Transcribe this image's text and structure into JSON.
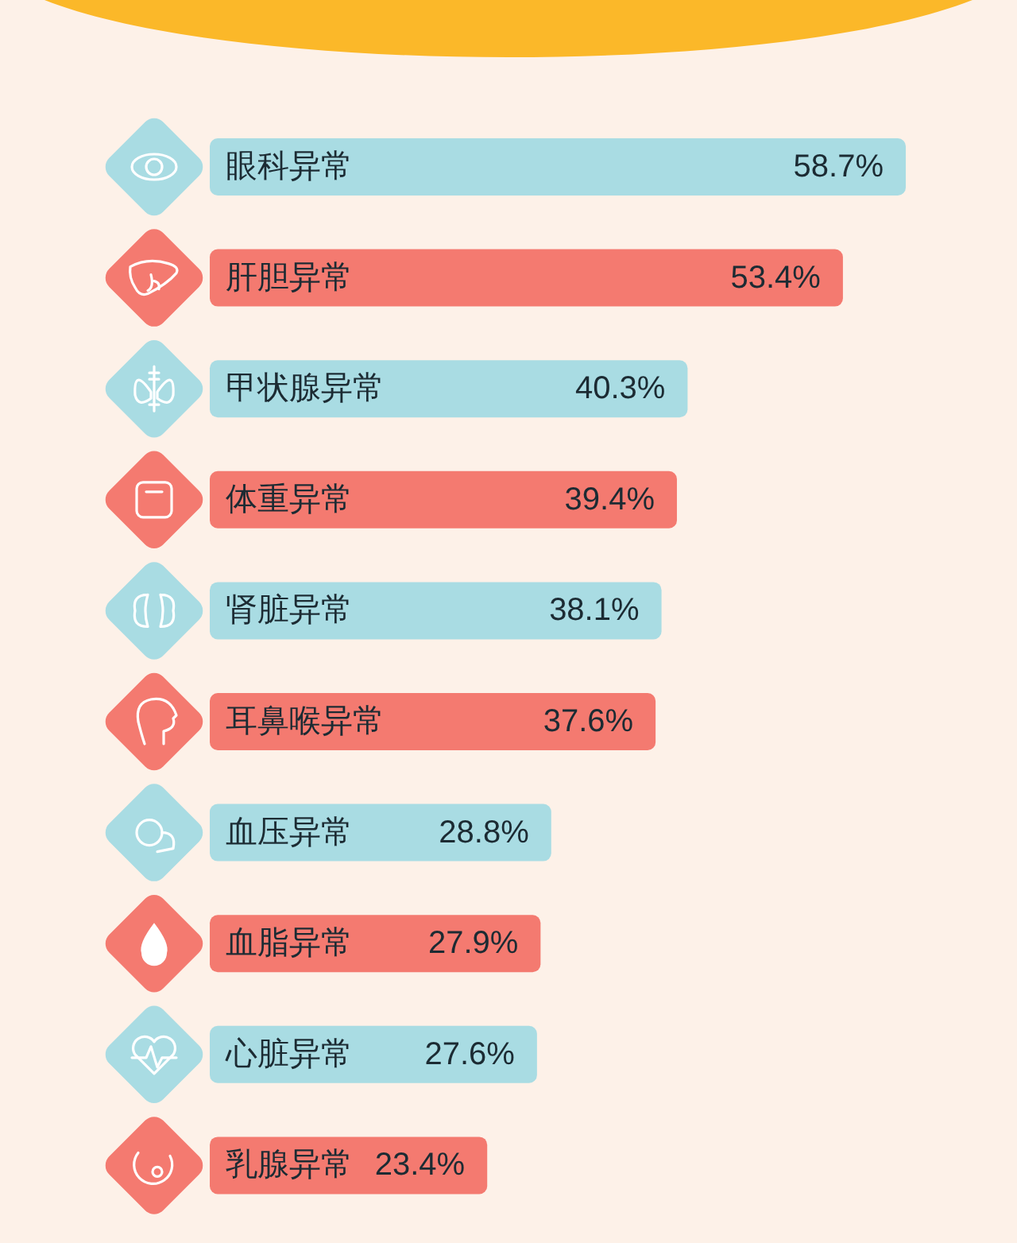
{
  "chart_data": {
    "type": "bar",
    "orientation": "horizontal",
    "categories": [
      "眼科异常",
      "肝胆异常",
      "甲状腺异常",
      "体重异常",
      "肾脏异常",
      "耳鼻喉异常",
      "血压异常",
      "血脂异常",
      "心脏异常",
      "乳腺异常"
    ],
    "values": [
      58.7,
      53.4,
      40.3,
      39.4,
      38.1,
      37.6,
      28.8,
      27.9,
      27.6,
      23.4
    ],
    "colors": [
      "#a9dce3",
      "#f47a70",
      "#a9dce3",
      "#f47a70",
      "#a9dce3",
      "#f47a70",
      "#a9dce3",
      "#f47a70",
      "#a9dce3",
      "#f47a70"
    ],
    "value_labels": [
      "58.7%",
      "53.4%",
      "40.3%",
      "39.4%",
      "38.1%",
      "37.6%",
      "28.8%",
      "27.9%",
      "27.6%",
      "23.4%"
    ]
  }
}
